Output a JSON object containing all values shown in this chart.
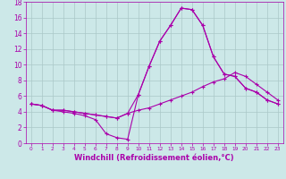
{
  "background_color": "#cce8e8",
  "grid_color": "#aac8c8",
  "line_color": "#aa00aa",
  "marker": "+",
  "xlabel": "Windchill (Refroidissement éolien,°C)",
  "xlabel_fontsize": 6,
  "tick_fontsize": 5.5,
  "xlim": [
    -0.5,
    23.5
  ],
  "ylim": [
    0,
    18
  ],
  "xticks": [
    0,
    1,
    2,
    3,
    4,
    5,
    6,
    7,
    8,
    9,
    10,
    11,
    12,
    13,
    14,
    15,
    16,
    17,
    18,
    19,
    20,
    21,
    22,
    23
  ],
  "yticks": [
    0,
    2,
    4,
    6,
    8,
    10,
    12,
    14,
    16,
    18
  ],
  "series": [
    {
      "x": [
        0,
        1,
        2,
        3,
        4,
        5,
        6,
        7,
        8,
        9,
        10,
        11,
        12,
        13,
        14,
        15,
        16,
        17,
        18,
        19,
        20,
        21,
        22,
        23
      ],
      "y": [
        5.0,
        4.8,
        4.2,
        4.2,
        4.0,
        3.8,
        3.6,
        3.4,
        3.2,
        3.8,
        4.2,
        4.5,
        5.0,
        5.5,
        6.0,
        6.5,
        7.2,
        7.8,
        8.2,
        9.0,
        8.5,
        7.5,
        6.5,
        5.5
      ]
    },
    {
      "x": [
        0,
        1,
        2,
        3,
        4,
        5,
        6,
        7,
        8,
        9,
        10,
        11,
        12,
        13,
        14,
        15,
        16,
        17,
        18,
        19,
        20,
        21,
        22,
        23
      ],
      "y": [
        5.0,
        4.8,
        4.2,
        4.2,
        4.0,
        3.8,
        3.6,
        3.4,
        3.2,
        3.8,
        6.2,
        9.8,
        13.0,
        15.0,
        17.2,
        17.0,
        15.0,
        11.0,
        8.8,
        8.5,
        7.0,
        6.5,
        5.5,
        5.0
      ]
    },
    {
      "x": [
        0,
        1,
        2,
        3,
        4,
        5,
        6,
        7,
        8,
        9,
        10,
        11,
        12,
        13,
        14,
        15,
        16,
        17,
        18,
        19,
        20,
        21,
        22,
        23
      ],
      "y": [
        5.0,
        4.8,
        4.2,
        4.0,
        3.8,
        3.5,
        3.0,
        1.2,
        0.7,
        0.5,
        6.2,
        9.8,
        13.0,
        15.0,
        17.2,
        17.0,
        15.0,
        11.0,
        8.8,
        8.5,
        7.0,
        6.5,
        5.5,
        5.0
      ]
    }
  ]
}
